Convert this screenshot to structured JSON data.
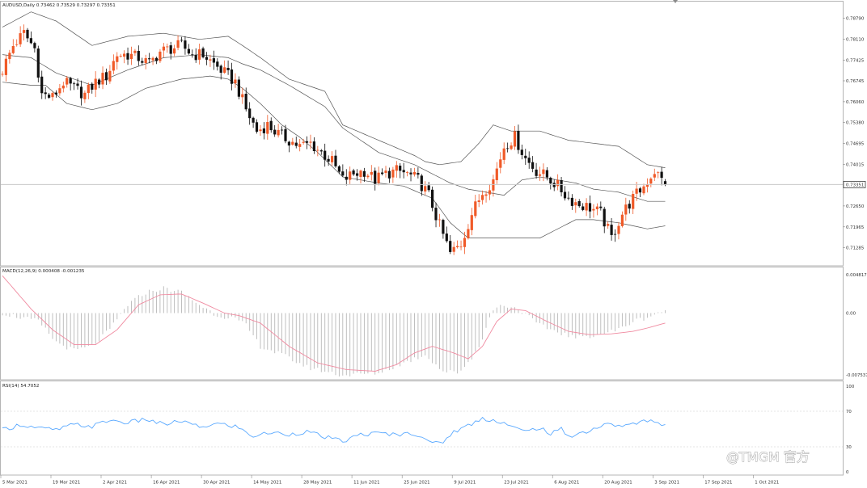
{
  "window": {
    "header": "AUDUSD,Daily  0.73462 0.73529 0.73297 0.73351",
    "current_price_label": "0.73351",
    "watermark": "@TMGM 官方"
  },
  "panes": {
    "price": {
      "indicator": "Bollinger Bands",
      "axis_labels": [
        "0.78790",
        "0.78110",
        "0.77425",
        "0.76745",
        "0.76060",
        "0.75380",
        "0.74695",
        "0.74015",
        "0.73351",
        "0.72650",
        "0.71965",
        "0.71285"
      ]
    },
    "macd": {
      "header": "MACD(12,26,9) 0.000408 -0.001235",
      "axis_labels": [
        "0.004817",
        "0.00",
        "-0.007537"
      ]
    },
    "rsi": {
      "header": "RSI(14) 54.7052",
      "axis_labels": [
        "100",
        "70",
        "30",
        "0"
      ]
    }
  },
  "time_axis": [
    "5 Mar 2021",
    "19 Mar 2021",
    "2 Apr 2021",
    "16 Apr 2021",
    "30 Apr 2021",
    "14 May 2021",
    "28 May 2021",
    "11 Jun 2021",
    "25 Jun 2021",
    "9 Jul 2021",
    "23 Jul 2021",
    "6 Aug 2021",
    "20 Aug 2021",
    "3 Sep 2021",
    "17 Sep 2021",
    "1 Oct 2021"
  ],
  "colors": {
    "bull": "#f05a28",
    "bear": "#111111",
    "bands": "#555555",
    "macd_hist": "#b8b8b8",
    "macd_signal": "#f08aa0",
    "rsi_line": "#5aa9ff",
    "level_line": "#dddddd",
    "price_line": "#c8c8c8"
  },
  "chart_data": {
    "type": "candlestick",
    "symbol": "AUDUSD",
    "timeframe": "Daily",
    "x_range": [
      "5 Mar 2021",
      "13 Oct 2021"
    ],
    "y_range": [
      0.7085,
      0.7915
    ],
    "last": {
      "open": 0.73462,
      "high": 0.73529,
      "low": 0.73297,
      "close": 0.73351
    },
    "close_path": [
      [
        0,
        0.771
      ],
      [
        3,
        0.779
      ],
      [
        6,
        0.783
      ],
      [
        9,
        0.778
      ],
      [
        11,
        0.763
      ],
      [
        14,
        0.762
      ],
      [
        17,
        0.767
      ],
      [
        20,
        0.765
      ],
      [
        23,
        0.763
      ],
      [
        26,
        0.767
      ],
      [
        29,
        0.769
      ],
      [
        32,
        0.776
      ],
      [
        35,
        0.776
      ],
      [
        38,
        0.775
      ],
      [
        41,
        0.773
      ],
      [
        44,
        0.777
      ],
      [
        47,
        0.778
      ],
      [
        50,
        0.779
      ],
      [
        53,
        0.776
      ],
      [
        56,
        0.776
      ],
      [
        59,
        0.773
      ],
      [
        62,
        0.77
      ],
      [
        65,
        0.767
      ],
      [
        68,
        0.758
      ],
      [
        71,
        0.751
      ],
      [
        74,
        0.753
      ],
      [
        77,
        0.75
      ],
      [
        80,
        0.748
      ],
      [
        83,
        0.746
      ],
      [
        86,
        0.747
      ],
      [
        89,
        0.744
      ],
      [
        92,
        0.741
      ],
      [
        95,
        0.735
      ],
      [
        98,
        0.737
      ],
      [
        101,
        0.738
      ],
      [
        104,
        0.735
      ],
      [
        107,
        0.737
      ],
      [
        110,
        0.738
      ],
      [
        113,
        0.737
      ],
      [
        116,
        0.735
      ],
      [
        119,
        0.73
      ],
      [
        122,
        0.72
      ],
      [
        125,
        0.711
      ],
      [
        128,
        0.714
      ],
      [
        131,
        0.724
      ],
      [
        134,
        0.731
      ],
      [
        137,
        0.735
      ],
      [
        140,
        0.746
      ],
      [
        143,
        0.749
      ],
      [
        146,
        0.742
      ],
      [
        149,
        0.738
      ],
      [
        152,
        0.736
      ],
      [
        155,
        0.733
      ],
      [
        158,
        0.729
      ],
      [
        161,
        0.727
      ],
      [
        164,
        0.726
      ],
      [
        167,
        0.724
      ],
      [
        170,
        0.716
      ],
      [
        173,
        0.724
      ],
      [
        176,
        0.729
      ],
      [
        179,
        0.733
      ],
      [
        182,
        0.738
      ],
      [
        185,
        0.7335
      ]
    ],
    "bb_upper_path": [
      [
        0,
        0.785
      ],
      [
        8,
        0.79
      ],
      [
        15,
        0.787
      ],
      [
        25,
        0.779
      ],
      [
        35,
        0.782
      ],
      [
        45,
        0.783
      ],
      [
        55,
        0.781
      ],
      [
        63,
        0.782
      ],
      [
        67,
        0.779
      ],
      [
        72,
        0.775
      ],
      [
        80,
        0.768
      ],
      [
        90,
        0.764
      ],
      [
        95,
        0.753
      ],
      [
        105,
        0.748
      ],
      [
        115,
        0.743
      ],
      [
        118,
        0.741
      ],
      [
        122,
        0.74
      ],
      [
        128,
        0.741
      ],
      [
        133,
        0.747
      ],
      [
        137,
        0.753
      ],
      [
        142,
        0.751
      ],
      [
        150,
        0.751
      ],
      [
        158,
        0.748
      ],
      [
        165,
        0.747
      ],
      [
        172,
        0.746
      ],
      [
        180,
        0.74
      ],
      [
        185,
        0.739
      ]
    ],
    "bb_middle_path": [
      [
        0,
        0.776
      ],
      [
        8,
        0.775
      ],
      [
        15,
        0.77
      ],
      [
        25,
        0.766
      ],
      [
        35,
        0.771
      ],
      [
        45,
        0.775
      ],
      [
        55,
        0.776
      ],
      [
        63,
        0.775
      ],
      [
        67,
        0.773
      ],
      [
        72,
        0.771
      ],
      [
        80,
        0.766
      ],
      [
        90,
        0.759
      ],
      [
        95,
        0.752
      ],
      [
        105,
        0.744
      ],
      [
        115,
        0.74
      ],
      [
        120,
        0.737
      ],
      [
        125,
        0.734
      ],
      [
        130,
        0.732
      ],
      [
        135,
        0.731
      ],
      [
        140,
        0.73
      ],
      [
        145,
        0.735
      ],
      [
        150,
        0.736
      ],
      [
        155,
        0.735
      ],
      [
        160,
        0.734
      ],
      [
        165,
        0.732
      ],
      [
        172,
        0.731
      ],
      [
        180,
        0.728
      ],
      [
        185,
        0.728
      ]
    ],
    "bb_lower_path": [
      [
        0,
        0.767
      ],
      [
        8,
        0.766
      ],
      [
        12,
        0.766
      ],
      [
        18,
        0.76
      ],
      [
        25,
        0.758
      ],
      [
        32,
        0.76
      ],
      [
        40,
        0.765
      ],
      [
        50,
        0.768
      ],
      [
        58,
        0.769
      ],
      [
        63,
        0.768
      ],
      [
        67,
        0.765
      ],
      [
        72,
        0.76
      ],
      [
        78,
        0.753
      ],
      [
        83,
        0.749
      ],
      [
        88,
        0.744
      ],
      [
        95,
        0.736
      ],
      [
        105,
        0.734
      ],
      [
        112,
        0.733
      ],
      [
        120,
        0.729
      ],
      [
        125,
        0.721
      ],
      [
        130,
        0.716
      ],
      [
        135,
        0.716
      ],
      [
        140,
        0.716
      ],
      [
        145,
        0.716
      ],
      [
        150,
        0.716
      ],
      [
        160,
        0.722
      ],
      [
        165,
        0.722
      ],
      [
        172,
        0.721
      ],
      [
        180,
        0.719
      ],
      [
        185,
        0.72
      ]
    ],
    "macd": {
      "range": [
        -0.007537,
        0.004817
      ],
      "histogram_path": [
        [
          0,
          0.0
        ],
        [
          10,
          -0.001
        ],
        [
          15,
          -0.0035
        ],
        [
          20,
          -0.0045
        ],
        [
          25,
          -0.004
        ],
        [
          30,
          -0.002
        ],
        [
          35,
          0.001
        ],
        [
          40,
          0.0025
        ],
        [
          45,
          0.003
        ],
        [
          50,
          0.0025
        ],
        [
          55,
          0.001
        ],
        [
          60,
          -0.0003
        ],
        [
          64,
          -0.0005
        ],
        [
          68,
          -0.0015
        ],
        [
          72,
          -0.004
        ],
        [
          78,
          -0.005
        ],
        [
          85,
          -0.0065
        ],
        [
          95,
          -0.0075
        ],
        [
          105,
          -0.0072
        ],
        [
          112,
          -0.006
        ],
        [
          118,
          -0.005
        ],
        [
          123,
          -0.007
        ],
        [
          127,
          -0.0072
        ],
        [
          131,
          -0.0055
        ],
        [
          134,
          -0.003
        ],
        [
          137,
          0.0005
        ],
        [
          140,
          0.001
        ],
        [
          144,
          0.0005
        ],
        [
          150,
          -0.0015
        ],
        [
          160,
          -0.003
        ],
        [
          167,
          -0.0025
        ],
        [
          172,
          -0.002
        ],
        [
          176,
          -0.001
        ],
        [
          180,
          -0.0005
        ],
        [
          185,
          0.0004
        ]
      ],
      "signal_path": [
        [
          0,
          0.0045
        ],
        [
          8,
          0.0005
        ],
        [
          14,
          -0.002
        ],
        [
          20,
          -0.0038
        ],
        [
          26,
          -0.0038
        ],
        [
          32,
          -0.002
        ],
        [
          38,
          0.001
        ],
        [
          44,
          0.0022
        ],
        [
          50,
          0.0023
        ],
        [
          56,
          0.0012
        ],
        [
          62,
          0.0
        ],
        [
          66,
          -0.0003
        ],
        [
          72,
          -0.0012
        ],
        [
          80,
          -0.004
        ],
        [
          88,
          -0.006
        ],
        [
          96,
          -0.0068
        ],
        [
          104,
          -0.007
        ],
        [
          110,
          -0.0062
        ],
        [
          115,
          -0.0048
        ],
        [
          120,
          -0.004
        ],
        [
          126,
          -0.0048
        ],
        [
          130,
          -0.0055
        ],
        [
          134,
          -0.004
        ],
        [
          138,
          -0.001
        ],
        [
          142,
          0.0005
        ],
        [
          146,
          0.0003
        ],
        [
          152,
          -0.001
        ],
        [
          158,
          -0.0022
        ],
        [
          164,
          -0.0026
        ],
        [
          170,
          -0.0025
        ],
        [
          176,
          -0.0022
        ],
        [
          180,
          -0.0018
        ],
        [
          185,
          -0.0012
        ]
      ]
    },
    "rsi": {
      "range": [
        0,
        100
      ],
      "levels": [
        70,
        30
      ],
      "path": [
        [
          0,
          49
        ],
        [
          5,
          55
        ],
        [
          10,
          51
        ],
        [
          15,
          49
        ],
        [
          20,
          55
        ],
        [
          25,
          53
        ],
        [
          30,
          60
        ],
        [
          35,
          57
        ],
        [
          40,
          61
        ],
        [
          45,
          55
        ],
        [
          50,
          59
        ],
        [
          55,
          52
        ],
        [
          60,
          56
        ],
        [
          65,
          53
        ],
        [
          70,
          42
        ],
        [
          75,
          46
        ],
        [
          80,
          44
        ],
        [
          85,
          47
        ],
        [
          90,
          41
        ],
        [
          95,
          36
        ],
        [
          100,
          44
        ],
        [
          105,
          45
        ],
        [
          110,
          44
        ],
        [
          115,
          45
        ],
        [
          118,
          40
        ],
        [
          120,
          33
        ],
        [
          123,
          36
        ],
        [
          126,
          47
        ],
        [
          130,
          54
        ],
        [
          134,
          62
        ],
        [
          137,
          60
        ],
        [
          140,
          57
        ],
        [
          143,
          51
        ],
        [
          146,
          47
        ],
        [
          150,
          52
        ],
        [
          153,
          44
        ],
        [
          156,
          50
        ],
        [
          158,
          42
        ],
        [
          162,
          46
        ],
        [
          165,
          50
        ],
        [
          168,
          55
        ],
        [
          172,
          54
        ],
        [
          176,
          55
        ],
        [
          180,
          60
        ],
        [
          185,
          55
        ]
      ]
    }
  }
}
